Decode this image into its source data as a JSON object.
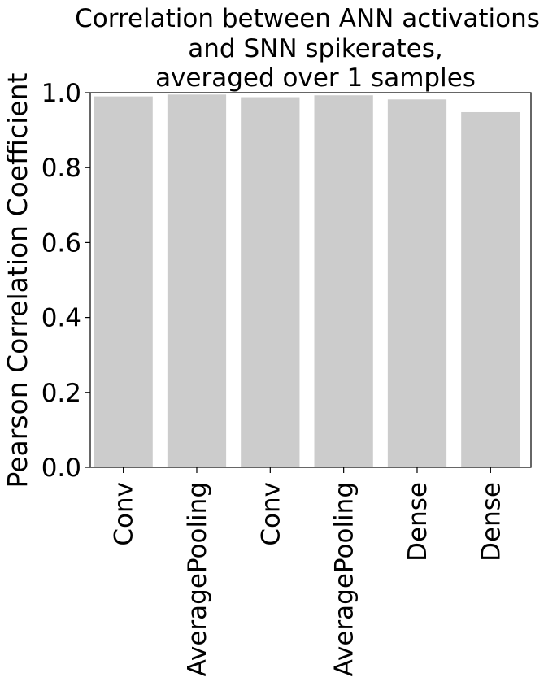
{
  "chart_data": {
    "type": "bar",
    "title_lines": [
      "Correlation between ANN activations",
      "and SNN spikerates,",
      "averaged over 1 samples"
    ],
    "xlabel": "",
    "ylabel": "Pearson Correlation Coefficient",
    "categories": [
      "Conv",
      "AveragePooling",
      "Conv",
      "AveragePooling",
      "Dense",
      "Dense"
    ],
    "values": [
      0.99,
      0.995,
      0.988,
      0.993,
      0.982,
      0.948
    ],
    "ylim": [
      0,
      1.0
    ],
    "yticks": [
      "0.0",
      "0.2",
      "0.4",
      "0.6",
      "0.8",
      "1.0"
    ],
    "grid": false,
    "bar_color": "#cccccc"
  }
}
